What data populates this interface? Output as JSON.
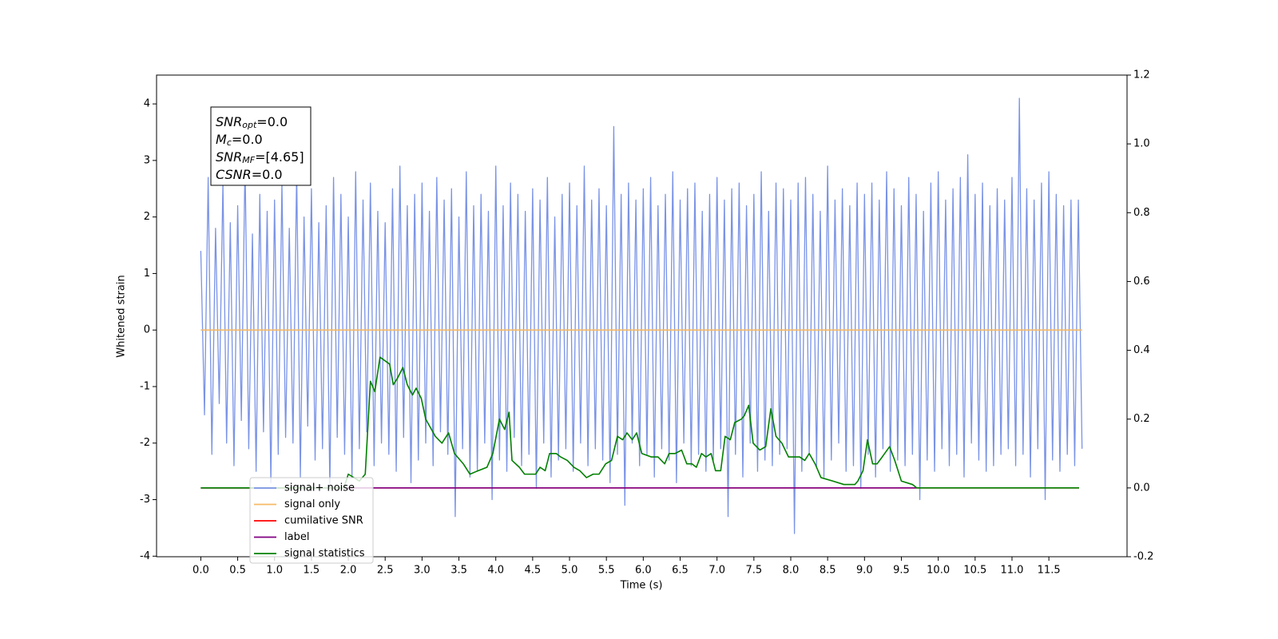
{
  "chart_data": {
    "type": "line",
    "xlabel": "Time (s)",
    "ylabel": "Whitened strain",
    "xlim": [
      -0.6,
      12.56
    ],
    "ylim": [
      -4.01,
      4.51
    ],
    "y2lim": [
      -0.2,
      1.2
    ],
    "xticks": [
      {
        "value": 0,
        "label": "0.0"
      },
      0.5,
      {
        "value": 1,
        "label": "1.0"
      },
      1.5,
      {
        "value": 2,
        "label": "2.0"
      },
      2.5,
      {
        "value": 3,
        "label": "3.0"
      },
      3.5,
      {
        "value": 4,
        "label": "4.0"
      },
      4.5,
      {
        "value": 5,
        "label": "5.0"
      },
      5.5,
      {
        "value": 6,
        "label": "6.0"
      },
      6.5,
      {
        "value": 7,
        "label": "7.0"
      },
      7.5,
      {
        "value": 8,
        "label": "8.0"
      },
      8.5,
      {
        "value": 9,
        "label": "9.0"
      },
      9.5,
      {
        "value": 10,
        "label": "10.0"
      },
      10.5,
      {
        "value": 11,
        "label": "11.0"
      },
      11.5
    ],
    "yticks": [
      -4,
      -3,
      -2,
      -1,
      0,
      1,
      2,
      3,
      4
    ],
    "y2ticks": [
      -0.2,
      {
        "value": 0,
        "label": "0.0"
      },
      0.2,
      0.4,
      0.6,
      0.8,
      {
        "value": 1,
        "label": "1.0"
      },
      1.2
    ],
    "legend_loc": "lower left",
    "annotations": [
      {
        "base": "SNR",
        "sub": "opt",
        "text": "=0.0"
      },
      {
        "base": "M",
        "sub": "c",
        "text": "=0.0"
      },
      {
        "base": "SNR",
        "sub": "MF",
        "text": "=[4.65]"
      },
      {
        "base": "CSNR",
        "sub": null,
        "text": "=0.0"
      }
    ],
    "series": [
      {
        "name": "signal+ noise",
        "color": "#7a93e6",
        "x": [
          0,
          0.05,
          0.1,
          0.15,
          0.2,
          0.25,
          0.3,
          0.35,
          0.4,
          0.45,
          0.5,
          0.55,
          0.6,
          0.65,
          0.7,
          0.75,
          0.8,
          0.85,
          0.9,
          0.95,
          1,
          1.05,
          1.1,
          1.15,
          1.2,
          1.25,
          1.3,
          1.35,
          1.4,
          1.45,
          1.5,
          1.55,
          1.6,
          1.65,
          1.7,
          1.75,
          1.8,
          1.85,
          1.9,
          1.95,
          2,
          2.05,
          2.1,
          2.15,
          2.2,
          2.25,
          2.3,
          2.35,
          2.4,
          2.45,
          2.5,
          2.55,
          2.6,
          2.65,
          2.7,
          2.75,
          2.8,
          2.85,
          2.9,
          2.95,
          3,
          3.05,
          3.1,
          3.15,
          3.2,
          3.25,
          3.3,
          3.35,
          3.4,
          3.45,
          3.5,
          3.55,
          3.6,
          3.65,
          3.7,
          3.75,
          3.8,
          3.85,
          3.9,
          3.95,
          4,
          4.05,
          4.1,
          4.15,
          4.2,
          4.25,
          4.3,
          4.35,
          4.4,
          4.45,
          4.5,
          4.55,
          4.6,
          4.65,
          4.7,
          4.75,
          4.8,
          4.85,
          4.9,
          4.95,
          5,
          5.05,
          5.1,
          5.15,
          5.2,
          5.25,
          5.3,
          5.35,
          5.4,
          5.45,
          5.5,
          5.55,
          5.6,
          5.65,
          5.7,
          5.75,
          5.8,
          5.85,
          5.9,
          5.95,
          6,
          6.05,
          6.1,
          6.15,
          6.2,
          6.25,
          6.3,
          6.35,
          6.4,
          6.45,
          6.5,
          6.55,
          6.6,
          6.65,
          6.7,
          6.75,
          6.8,
          6.85,
          6.9,
          6.95,
          7,
          7.05,
          7.1,
          7.15,
          7.2,
          7.25,
          7.3,
          7.35,
          7.4,
          7.45,
          7.5,
          7.55,
          7.6,
          7.65,
          7.7,
          7.75,
          7.8,
          7.85,
          7.9,
          7.95,
          8,
          8.05,
          8.1,
          8.15,
          8.2,
          8.25,
          8.3,
          8.35,
          8.4,
          8.45,
          8.5,
          8.55,
          8.6,
          8.65,
          8.7,
          8.75,
          8.8,
          8.85,
          8.9,
          8.95,
          9,
          9.05,
          9.1,
          9.15,
          9.2,
          9.25,
          9.3,
          9.35,
          9.4,
          9.45,
          9.5,
          9.55,
          9.6,
          9.65,
          9.7,
          9.75,
          9.8,
          9.85,
          9.9,
          9.95,
          10,
          10.05,
          10.1,
          10.15,
          10.2,
          10.25,
          10.3,
          10.35,
          10.4,
          10.45,
          10.5,
          10.55,
          10.6,
          10.65,
          10.7,
          10.75,
          10.8,
          10.85,
          10.9,
          10.95,
          11,
          11.05,
          11.1,
          11.15,
          11.2,
          11.25,
          11.3,
          11.35,
          11.4,
          11.45,
          11.5,
          11.55,
          11.6,
          11.65,
          11.7,
          11.75,
          11.8,
          11.85,
          11.9,
          11.95
        ],
        "values": [
          1.4,
          -1.5,
          2.7,
          -2.2,
          1.8,
          -1.3,
          2.6,
          -2.0,
          1.9,
          -2.4,
          2.2,
          -1.6,
          3.0,
          -2.1,
          1.7,
          -2.5,
          2.4,
          -1.8,
          2.1,
          -2.7,
          2.3,
          -2.2,
          2.6,
          -1.9,
          1.8,
          -2.0,
          2.8,
          -2.6,
          2.0,
          -1.7,
          2.5,
          -2.3,
          1.9,
          -2.1,
          2.2,
          -2.8,
          2.7,
          -1.9,
          2.4,
          -2.2,
          2.0,
          -2.6,
          2.8,
          -2.1,
          2.3,
          -1.8,
          2.6,
          -2.4,
          2.1,
          -2.0,
          1.9,
          -2.2,
          2.5,
          -2.5,
          2.9,
          -1.9,
          2.2,
          -2.7,
          2.4,
          -2.3,
          2.6,
          -2.0,
          2.1,
          -2.4,
          2.7,
          -1.8,
          2.3,
          -2.2,
          2.5,
          -3.3,
          2.0,
          -2.1,
          2.8,
          -2.6,
          2.2,
          -2.5,
          2.4,
          -2.0,
          2.1,
          -3.0,
          2.9,
          -2.3,
          2.2,
          -2.5,
          2.6,
          -1.9,
          2.4,
          -2.4,
          2.1,
          -2.2,
          2.5,
          -2.8,
          2.3,
          -2.0,
          2.7,
          -2.6,
          2.0,
          -2.3,
          2.4,
          -2.1,
          2.6,
          -2.5,
          2.2,
          -2.0,
          2.9,
          -2.4,
          2.3,
          -2.1,
          2.5,
          -2.3,
          2.2,
          -2.7,
          3.6,
          -2.2,
          2.4,
          -3.1,
          2.6,
          -2.0,
          2.3,
          -2.4,
          2.5,
          -2.2,
          2.7,
          -2.6,
          2.2,
          -2.1,
          2.4,
          -2.3,
          2.8,
          -2.7,
          2.3,
          -2.0,
          2.5,
          -2.4,
          2.6,
          -2.2,
          2.1,
          -2.5,
          2.4,
          -2.3,
          2.7,
          -2.1,
          2.3,
          -3.3,
          2.5,
          -2.2,
          2.6,
          -2.6,
          2.2,
          -2.0,
          2.4,
          -2.5,
          2.8,
          -2.3,
          2.1,
          -2.4,
          2.6,
          -2.2,
          2.5,
          -2.1,
          2.3,
          -3.6,
          2.6,
          -2.5,
          2.7,
          -2.2,
          2.4,
          -2.4,
          2.1,
          -2.6,
          2.9,
          -2.3,
          2.3,
          -2.0,
          2.5,
          -2.5,
          2.2,
          -2.4,
          2.6,
          -2.8,
          2.4,
          -2.2,
          2.6,
          -2.6,
          2.3,
          -2.1,
          2.8,
          -2.5,
          2.5,
          -2.3,
          2.2,
          -2.4,
          2.7,
          -2.2,
          2.4,
          -3.0,
          2.1,
          -2.3,
          2.6,
          -2.5,
          2.8,
          -2.1,
          2.3,
          -2.4,
          2.5,
          -2.2,
          2.7,
          -2.6,
          3.1,
          -2.0,
          2.4,
          -2.3,
          2.6,
          -2.5,
          2.2,
          -2.4,
          2.5,
          -2.2,
          2.3,
          -2.1,
          2.7,
          -2.4,
          4.1,
          -2.2,
          2.5,
          -2.6,
          2.3,
          -2.1,
          2.6,
          -3.0,
          2.8,
          -2.3,
          2.4,
          -2.5,
          2.2,
          -2.2,
          2.3,
          -2.4,
          2.3,
          -2.1
        ]
      },
      {
        "name": "signal only",
        "color": "#f5b965",
        "x": [
          0,
          11.95
        ],
        "values": [
          0,
          0
        ]
      },
      {
        "name": "cumilative SNR",
        "color": "#ff0000",
        "axis": "y2",
        "x": [
          0,
          11.91
        ],
        "values": [
          0,
          0
        ]
      },
      {
        "name": "label",
        "color": "#800080",
        "axis": "y2",
        "x": [
          0,
          9.71
        ],
        "values": [
          0,
          0
        ]
      },
      {
        "name": "signal statistics",
        "color": "#008000",
        "axis": "y2",
        "x": [
          0,
          1.94,
          2.0,
          2.15,
          2.23,
          2.3,
          2.36,
          2.43,
          2.56,
          2.61,
          2.67,
          2.74,
          2.8,
          2.87,
          2.92,
          2.99,
          3.05,
          3.18,
          3.27,
          3.36,
          3.44,
          3.56,
          3.65,
          3.76,
          3.88,
          3.96,
          4.05,
          4.12,
          4.18,
          4.22,
          4.32,
          4.39,
          4.54,
          4.6,
          4.67,
          4.73,
          4.82,
          4.88,
          4.97,
          5.06,
          5.14,
          5.23,
          5.32,
          5.4,
          5.49,
          5.57,
          5.65,
          5.72,
          5.78,
          5.85,
          5.91,
          5.98,
          6.11,
          6.2,
          6.29,
          6.35,
          6.43,
          6.52,
          6.59,
          6.66,
          6.72,
          6.79,
          6.85,
          6.92,
          6.98,
          7.05,
          7.11,
          7.18,
          7.24,
          7.33,
          7.37,
          7.43,
          7.49,
          7.58,
          7.66,
          7.73,
          7.8,
          7.88,
          7.97,
          8.06,
          8.12,
          8.19,
          8.25,
          8.33,
          8.41,
          8.57,
          8.72,
          8.87,
          8.91,
          8.98,
          9.04,
          9.11,
          9.17,
          9.24,
          9.34,
          9.41,
          9.5,
          9.65,
          9.71,
          11.91
        ],
        "values": [
          0,
          0,
          0.04,
          0.02,
          0.04,
          0.31,
          0.28,
          0.38,
          0.36,
          0.3,
          0.32,
          0.35,
          0.3,
          0.27,
          0.29,
          0.26,
          0.2,
          0.15,
          0.13,
          0.16,
          0.1,
          0.07,
          0.04,
          0.05,
          0.06,
          0.1,
          0.2,
          0.17,
          0.22,
          0.08,
          0.06,
          0.04,
          0.04,
          0.06,
          0.05,
          0.1,
          0.1,
          0.09,
          0.08,
          0.06,
          0.05,
          0.03,
          0.04,
          0.04,
          0.07,
          0.08,
          0.15,
          0.14,
          0.16,
          0.14,
          0.16,
          0.1,
          0.09,
          0.09,
          0.07,
          0.1,
          0.1,
          0.11,
          0.07,
          0.07,
          0.06,
          0.1,
          0.09,
          0.1,
          0.05,
          0.05,
          0.15,
          0.14,
          0.19,
          0.2,
          0.21,
          0.24,
          0.13,
          0.11,
          0.12,
          0.23,
          0.15,
          0.13,
          0.09,
          0.09,
          0.09,
          0.08,
          0.1,
          0.07,
          0.03,
          0.02,
          0.01,
          0.01,
          0.02,
          0.05,
          0.14,
          0.07,
          0.07,
          0.09,
          0.12,
          0.08,
          0.02,
          0.01,
          0,
          0
        ]
      }
    ]
  }
}
